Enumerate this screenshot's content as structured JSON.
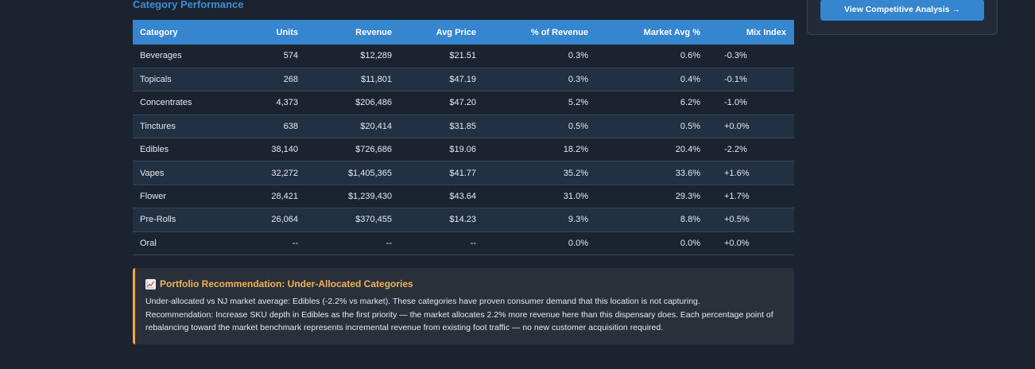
{
  "section_title": "Category Performance",
  "side_button_label": "View Competitive Analysis →",
  "table": {
    "headers": [
      "Category",
      "Units",
      "Revenue",
      "Avg Price",
      "% of Revenue",
      "Market Avg %",
      "Mix Index"
    ],
    "rows": [
      {
        "category": "Beverages",
        "units": "574",
        "revenue": "$12,289",
        "avg_price": "$21.51",
        "pct_revenue": "0.3%",
        "market_avg": "0.6%",
        "mix_index": "-0.3%",
        "mix_sign": "neg"
      },
      {
        "category": "Topicals",
        "units": "268",
        "revenue": "$11,801",
        "avg_price": "$47.19",
        "pct_revenue": "0.3%",
        "market_avg": "0.4%",
        "mix_index": "-0.1%",
        "mix_sign": "neg"
      },
      {
        "category": "Concentrates",
        "units": "4,373",
        "revenue": "$206,486",
        "avg_price": "$47.20",
        "pct_revenue": "5.2%",
        "market_avg": "6.2%",
        "mix_index": "-1.0%",
        "mix_sign": "neg"
      },
      {
        "category": "Tinctures",
        "units": "638",
        "revenue": "$20,414",
        "avg_price": "$31.85",
        "pct_revenue": "0.5%",
        "market_avg": "0.5%",
        "mix_index": "+0.0%",
        "mix_sign": "pos"
      },
      {
        "category": "Edibles",
        "units": "38,140",
        "revenue": "$726,686",
        "avg_price": "$19.06",
        "pct_revenue": "18.2%",
        "market_avg": "20.4%",
        "mix_index": "-2.2%",
        "mix_sign": "neg"
      },
      {
        "category": "Vapes",
        "units": "32,272",
        "revenue": "$1,405,365",
        "avg_price": "$41.77",
        "pct_revenue": "35.2%",
        "market_avg": "33.6%",
        "mix_index": "+1.6%",
        "mix_sign": "pos"
      },
      {
        "category": "Flower",
        "units": "28,421",
        "revenue": "$1,239,430",
        "avg_price": "$43.64",
        "pct_revenue": "31.0%",
        "market_avg": "29.3%",
        "mix_index": "+1.7%",
        "mix_sign": "pos"
      },
      {
        "category": "Pre-Rolls",
        "units": "26,064",
        "revenue": "$370,455",
        "avg_price": "$14.23",
        "pct_revenue": "9.3%",
        "market_avg": "8.8%",
        "mix_index": "+0.5%",
        "mix_sign": "pos"
      },
      {
        "category": "Oral",
        "units": "--",
        "revenue": "--",
        "avg_price": "--",
        "pct_revenue": "0.0%",
        "market_avg": "0.0%",
        "mix_index": "+0.0%",
        "mix_sign": "pos"
      }
    ]
  },
  "recommendation": {
    "icon": "chart-increasing-icon",
    "title": "Portfolio Recommendation: Under-Allocated Categories",
    "line1": "Under-allocated vs NJ market average: Edibles (-2.2% vs market). These categories have proven consumer demand that this location is not capturing.",
    "line2": "Recommendation: Increase SKU depth in Edibles as the first priority — the market allocates 2.2% more revenue here than this dispensary does. Each percentage point of rebalancing toward the market benchmark represents incremental revenue from existing foot traffic — no new customer acquisition required."
  },
  "colors": {
    "header_bg": "#3585cf",
    "negative": "#e5484d",
    "positive": "#3fb950",
    "accent_orange": "#f0a640"
  }
}
